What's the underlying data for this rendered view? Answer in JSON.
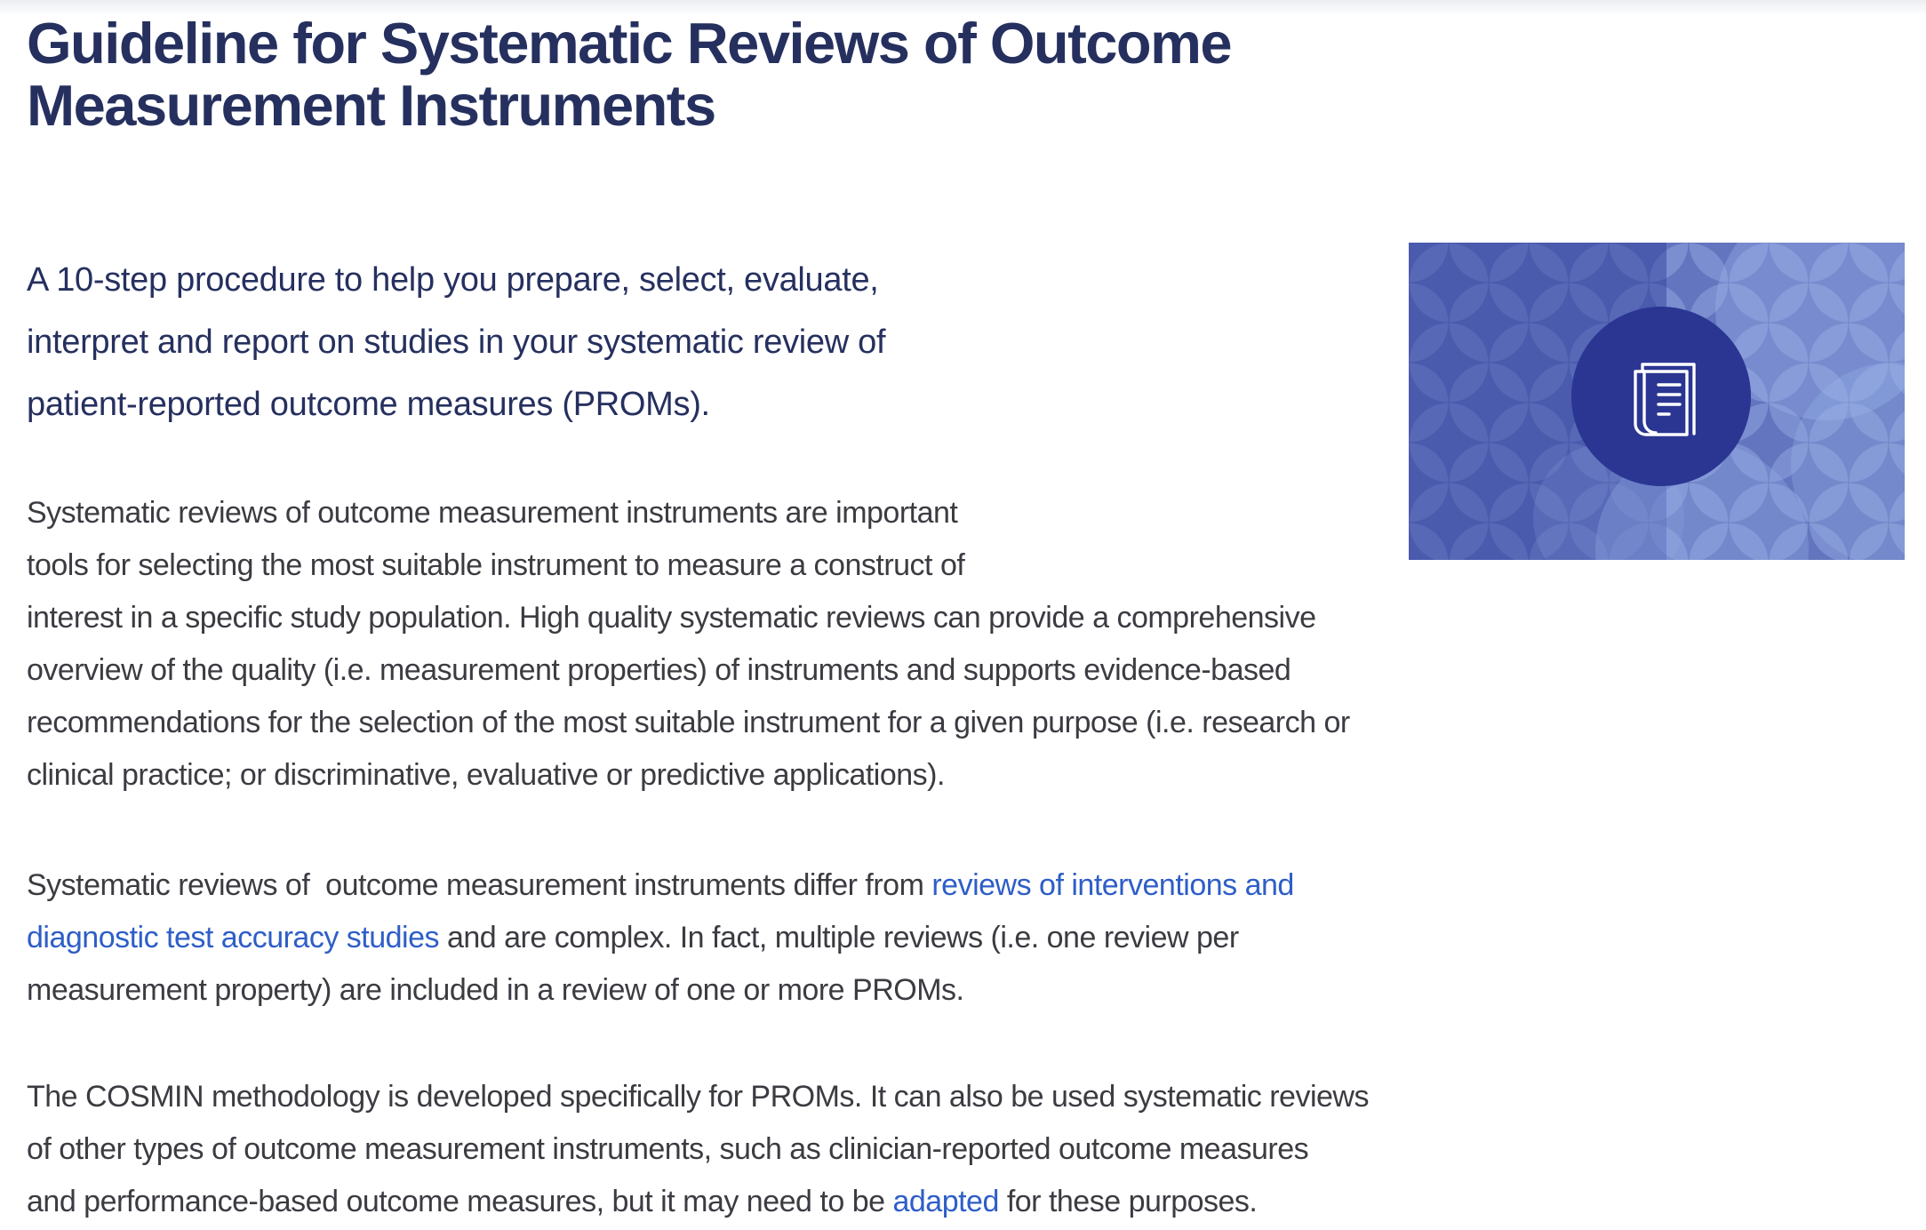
{
  "page": {
    "heading": "Guideline for Systematic Reviews of Outcome\nMeasurement Instruments",
    "lead": "A 10-step procedure to help you prepare, select, evaluate,\ninterpret and report on studies in your systematic review of\npatient-reported outcome measures (PROMs).",
    "paragraphs": [
      {
        "segments": [
          {
            "link": false,
            "text": "Systematic reviews of outcome measurement instruments are important\ntools for selecting the most suitable instrument to measure a construct of\ninterest in a specific study population. High quality systematic reviews can provide a comprehensive\noverview of the quality (i.e. measurement properties) of instruments and supports evidence-based\nrecommendations for the selection of the most suitable instrument for a given purpose (i.e. research or\nclinical practice; or discriminative, evaluative or predictive applications)."
          }
        ]
      },
      {
        "segments": [
          {
            "link": false,
            "text": "Systematic reviews of  outcome measurement instruments differ from "
          },
          {
            "link": true,
            "text": "reviews of interventions and\ndiagnostic test accuracy studies"
          },
          {
            "link": false,
            "text": " and are complex. In fact, multiple reviews (i.e. one review per\nmeasurement property) are included in a review of one or more PROMs."
          }
        ]
      },
      {
        "segments": [
          {
            "link": false,
            "text": "The COSMIN methodology is developed specifically for PROMs. It can also be used systematic reviews\nof other types of outcome measurement instruments, such as clinician-reported outcome measures\nand performance-based outcome measures, but it may need to be "
          },
          {
            "link": true,
            "text": "adapted"
          },
          {
            "link": false,
            "text": " for these purposes."
          }
        ]
      }
    ],
    "hero_image": {
      "icon": "book-icon",
      "description": "blue overlapping-circles pattern with centered dark circle and white book icon"
    }
  },
  "colors": {
    "heading": "#26305f",
    "body_text": "#3b3b42",
    "link": "#2e5ec7",
    "hero_background": "#3a49a2",
    "hero_pattern_light": "#a9c0ef",
    "hero_center_circle": "#2b3692",
    "hero_icon": "#ffffff",
    "top_strip": "#ebedf1"
  }
}
